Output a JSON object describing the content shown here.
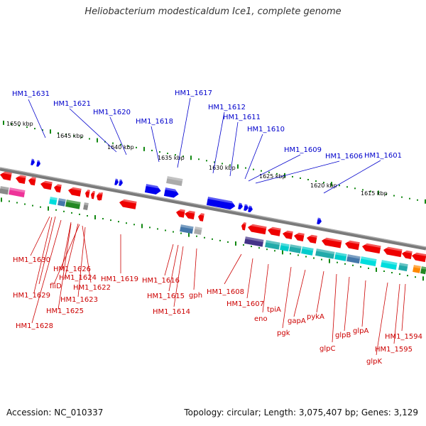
{
  "title": "Heliobacterium modesticaldum Ice1, complete genome",
  "accession": "Accession: NC_010337",
  "genome_info": "Topology: circular; Length: 3,075,407 bp; Genes: 3,129",
  "kbp_ticks": [
    "1650 kbp",
    "1645 kbp",
    "1640 kbp",
    "1635 kbp",
    "1630 kbp",
    "1625 kbp",
    "1620 kbp",
    "1615 kbp"
  ],
  "top_labels": [
    "HM1_1631",
    "HM1_1621",
    "HM1_1620",
    "HM1_1618",
    "HM1_1617",
    "HM1_1612",
    "HM1_1611",
    "HM1_1610",
    "HM1_1609",
    "HM1_1606",
    "HM1_1601"
  ],
  "bottom_labels": [
    "HM1_1630",
    "HM1_1626",
    "HM1_1624",
    "fliD",
    "HM1_1622",
    "HM1_1629",
    "HM1_1623",
    "HM1_1625",
    "HM1_1628",
    "HM1_1619",
    "HM1_1616",
    "HM1_1615",
    "HM1_1614",
    "gph",
    "HM1_1608",
    "HM1_1607",
    "eno",
    "tpiA",
    "pgk",
    "gapA",
    "pykA",
    "glpC",
    "glpB",
    "glpA",
    "glpK",
    "HM1_1594",
    "HM1_1595"
  ],
  "colors": {
    "backbone": "#7a7a7a",
    "forward_gene": "#0000ee",
    "reverse_gene": "#ee0000",
    "tick_dots": "#118811",
    "top_label": "#0000cc",
    "bottom_label": "#cc0000",
    "cog_colors": [
      "#ee3399",
      "#888888",
      "#00dddd",
      "#4477aa",
      "#228822",
      "#aaaaaa",
      "#443388",
      "#22aaaa",
      "#00cccc",
      "#ff8800"
    ]
  },
  "icons": {
    "forward_marker": "blue-triangle",
    "reverse_marker": "red-triangle"
  }
}
